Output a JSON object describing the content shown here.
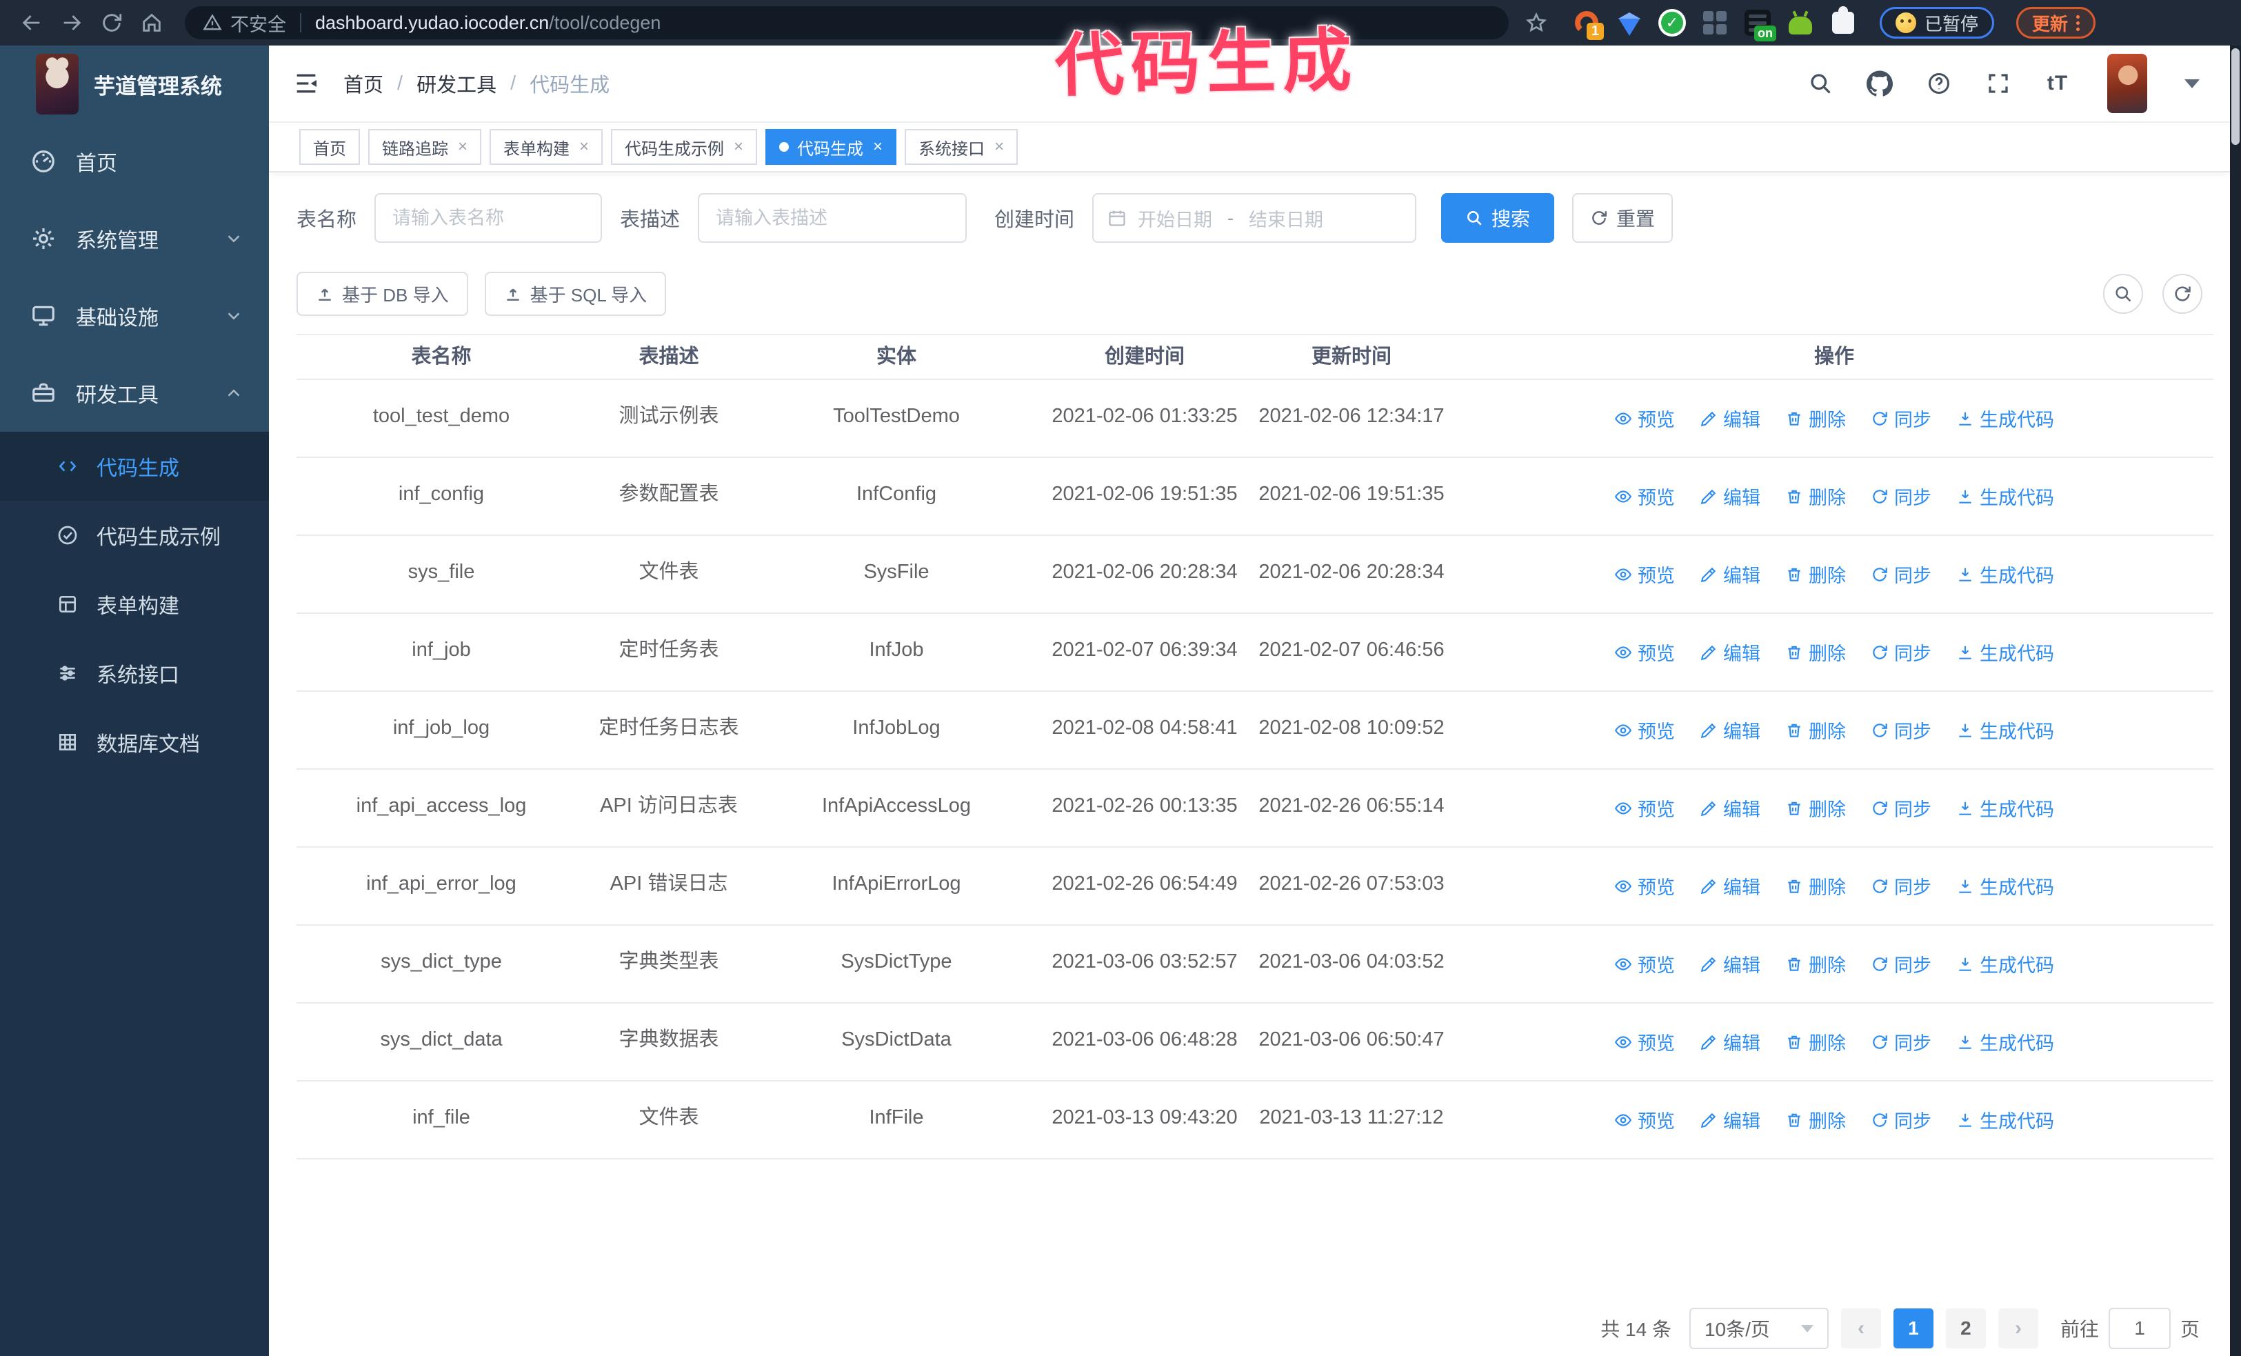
{
  "browser": {
    "security_label": "不安全",
    "url_host": "dashboard.yudao.iocoder.cn",
    "url_path": "/tool/codegen",
    "extension_badge": "1",
    "extension_on_badge": "on",
    "paused_badge": "已暂停",
    "update_button": "更新"
  },
  "annotation": {
    "text": "代码生成",
    "color": "#ff4163"
  },
  "sidebar": {
    "logo_title": "芋道管理系统",
    "items": [
      {
        "label": "首页",
        "icon": "dashboard-icon",
        "expandable": false,
        "state": "none"
      },
      {
        "label": "系统管理",
        "icon": "gear-icon",
        "expandable": true,
        "state": "collapsed"
      },
      {
        "label": "基础设施",
        "icon": "monitor-icon",
        "expandable": true,
        "state": "collapsed"
      },
      {
        "label": "研发工具",
        "icon": "toolbox-icon",
        "expandable": true,
        "state": "expanded"
      }
    ],
    "submenu": [
      {
        "label": "代码生成",
        "icon": "code-icon",
        "active": true
      },
      {
        "label": "代码生成示例",
        "icon": "example-icon",
        "active": false
      },
      {
        "label": "表单构建",
        "icon": "form-icon",
        "active": false
      },
      {
        "label": "系统接口",
        "icon": "api-icon",
        "active": false
      },
      {
        "label": "数据库文档",
        "icon": "database-icon",
        "active": false
      }
    ]
  },
  "header": {
    "breadcrumb": [
      "首页",
      "研发工具",
      "代码生成"
    ]
  },
  "tags": [
    {
      "label": "首页",
      "closable": false,
      "active": false
    },
    {
      "label": "链路追踪",
      "closable": true,
      "active": false
    },
    {
      "label": "表单构建",
      "closable": true,
      "active": false
    },
    {
      "label": "代码生成示例",
      "closable": true,
      "active": false
    },
    {
      "label": "代码生成",
      "closable": true,
      "active": true
    },
    {
      "label": "系统接口",
      "closable": true,
      "active": false
    }
  ],
  "filters": {
    "table_name_label": "表名称",
    "table_name_placeholder": "请输入表名称",
    "table_desc_label": "表描述",
    "table_desc_placeholder": "请输入表描述",
    "create_time_label": "创建时间",
    "date_start_placeholder": "开始日期",
    "date_separator": "-",
    "date_end_placeholder": "结束日期",
    "search_label": "搜索",
    "reset_label": "重置"
  },
  "toolbar": {
    "import_db_label": "基于 DB 导入",
    "import_sql_label": "基于 SQL 导入"
  },
  "table": {
    "columns": [
      "表名称",
      "表描述",
      "实体",
      "创建时间",
      "更新时间",
      "操作"
    ],
    "actions": [
      {
        "label": "预览",
        "icon": "eye-icon"
      },
      {
        "label": "编辑",
        "icon": "edit-icon"
      },
      {
        "label": "删除",
        "icon": "delete-icon"
      },
      {
        "label": "同步",
        "icon": "sync-icon"
      },
      {
        "label": "生成代码",
        "icon": "download-icon"
      }
    ],
    "rows": [
      {
        "name": "tool_test_demo",
        "desc": "测试示例表",
        "entity": "ToolTestDemo",
        "created": "2021-02-06 01:33:25",
        "updated": "2021-02-06 12:34:17"
      },
      {
        "name": "inf_config",
        "desc": "参数配置表",
        "entity": "InfConfig",
        "created": "2021-02-06 19:51:35",
        "updated": "2021-02-06 19:51:35"
      },
      {
        "name": "sys_file",
        "desc": "文件表",
        "entity": "SysFile",
        "created": "2021-02-06 20:28:34",
        "updated": "2021-02-06 20:28:34"
      },
      {
        "name": "inf_job",
        "desc": "定时任务表",
        "entity": "InfJob",
        "created": "2021-02-07 06:39:34",
        "updated": "2021-02-07 06:46:56"
      },
      {
        "name": "inf_job_log",
        "desc": "定时任务日志表",
        "entity": "InfJobLog",
        "created": "2021-02-08 04:58:41",
        "updated": "2021-02-08 10:09:52"
      },
      {
        "name": "inf_api_access_log",
        "desc": "API 访问日志表",
        "entity": "InfApiAccessLog",
        "created": "2021-02-26 00:13:35",
        "updated": "2021-02-26 06:55:14"
      },
      {
        "name": "inf_api_error_log",
        "desc": "API 错误日志",
        "entity": "InfApiErrorLog",
        "created": "2021-02-26 06:54:49",
        "updated": "2021-02-26 07:53:03"
      },
      {
        "name": "sys_dict_type",
        "desc": "字典类型表",
        "entity": "SysDictType",
        "created": "2021-03-06 03:52:57",
        "updated": "2021-03-06 04:03:52"
      },
      {
        "name": "sys_dict_data",
        "desc": "字典数据表",
        "entity": "SysDictData",
        "created": "2021-03-06 06:48:28",
        "updated": "2021-03-06 06:50:47"
      },
      {
        "name": "inf_file",
        "desc": "文件表",
        "entity": "InfFile",
        "created": "2021-03-13 09:43:20",
        "updated": "2021-03-13 11:27:12"
      }
    ]
  },
  "pagination": {
    "total_label": "共 14 条",
    "page_size": "10条/页",
    "prev_label": "‹",
    "next_label": "›",
    "pages": [
      "1",
      "2"
    ],
    "active_page": "1",
    "goto_label": "前往",
    "goto_value": "1",
    "goto_suffix": "页"
  },
  "colors": {
    "accent_blue": "#2d8cf0",
    "active_menu_text": "#3f9eff",
    "sidebar_bg": "#2d4c66",
    "submenu_bg": "#1e3349",
    "chrome_bg": "#202a38",
    "annotation_pink": "#ff4163",
    "update_orange": "#ff7a45",
    "paused_border_blue": "#3d7ef5"
  }
}
